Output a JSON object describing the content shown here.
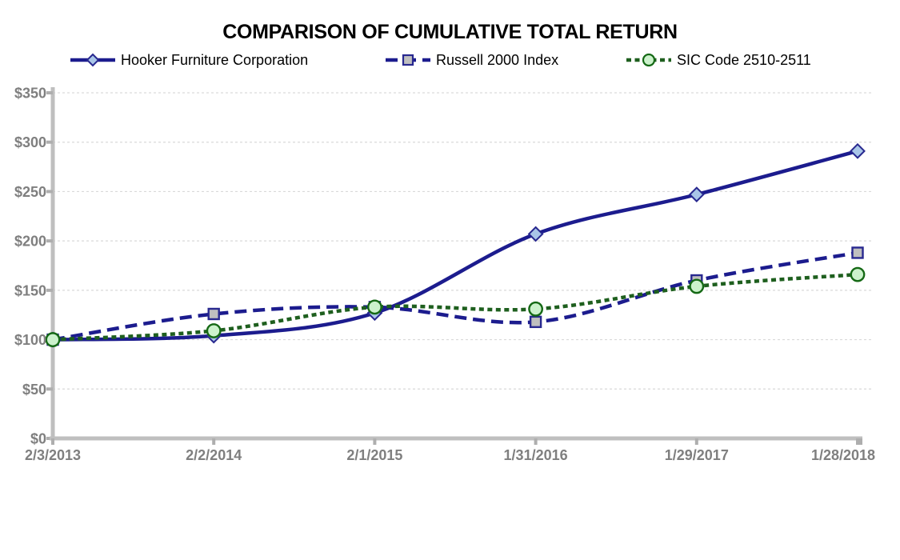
{
  "chart_data": {
    "type": "line",
    "title": "COMPARISON OF CUMULATIVE TOTAL RETURN",
    "categories": [
      "2/3/2013",
      "2/2/2014",
      "2/1/2015",
      "1/31/2016",
      "1/29/2017",
      "1/28/2018"
    ],
    "series": [
      {
        "name": "Hooker Furniture Corporation",
        "values": [
          100,
          104,
          127,
          207,
          247,
          291
        ],
        "line_style": "solid",
        "marker": "diamond",
        "line_color": "#1c1c8e",
        "marker_fill": "#a9c6e8",
        "marker_stroke": "#28288f"
      },
      {
        "name": "Russell 2000 Index",
        "values": [
          100,
          126,
          133,
          118,
          160,
          188
        ],
        "line_style": "long-dash",
        "marker": "square",
        "line_color": "#1c1c8e",
        "marker_fill": "#bfbfbf",
        "marker_stroke": "#28288f"
      },
      {
        "name": "SIC Code 2510-2511",
        "values": [
          100,
          109,
          133,
          131,
          154,
          166
        ],
        "line_style": "short-dash",
        "marker": "circle",
        "line_color": "#1e5f1e",
        "marker_fill": "#ccf2cc",
        "marker_stroke": "#156915"
      }
    ],
    "y_axis": {
      "min": 0,
      "max": 350,
      "step": 50,
      "tick_prefix": "$",
      "tick_labels": [
        "$0",
        "$50",
        "$100",
        "$150",
        "$200",
        "$250",
        "$300",
        "$350"
      ]
    },
    "x_axis": {
      "tick_labels": [
        "2/3/2013",
        "2/2/2014",
        "2/1/2015",
        "1/31/2016",
        "1/29/2017",
        "1/28/2018"
      ]
    },
    "grid": true,
    "legend_position": "top",
    "colors": {
      "gridline": "#d9d9d9",
      "axis_line": "#bfbfbf",
      "axis_tick": "#aeaeae",
      "axis_label": "#7f7f7f",
      "title": "#000000",
      "background": "#ffffff"
    }
  }
}
